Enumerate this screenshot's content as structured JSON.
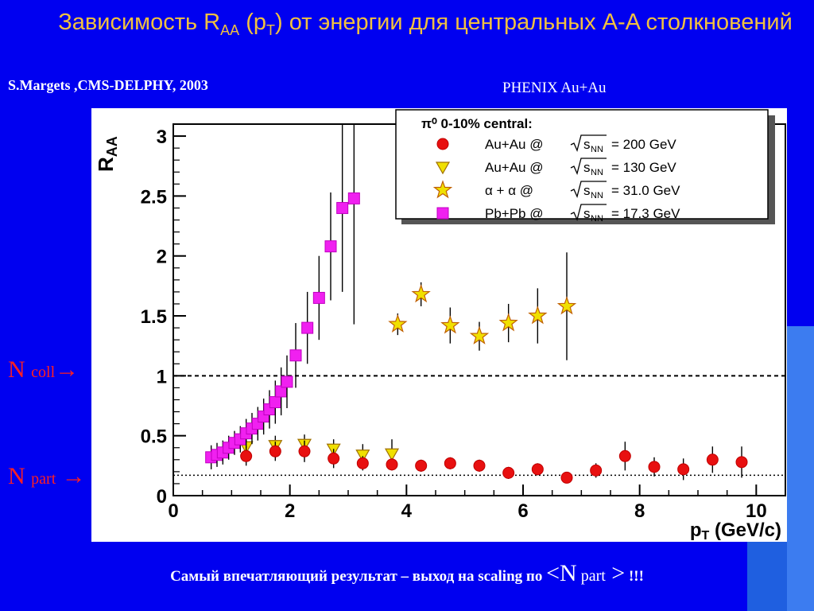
{
  "slide": {
    "title_main": "Зависимость R",
    "title_sub1": "AA",
    "title_mid": " (p",
    "title_sub2": "T",
    "title_end": ") от энергии для центральных A-A столкновений",
    "author": "S.Margets ,CMS-DELPHY, 2003",
    "phenix_label": "PHENIX  Au+Au",
    "n_coll": {
      "n": "N",
      "sub": "coll",
      "arrow": "→"
    },
    "n_part": {
      "n": "N",
      "sub": "part",
      "arrow": "→"
    },
    "bottom": {
      "text": "Самый впечатляющий результат – выход на scaling по ",
      "lt": "<",
      "n": "N",
      "sub": " part",
      "gt": " >",
      "exclaim": " !!!"
    }
  },
  "chart_data": {
    "type": "scatter",
    "xlabel": "p",
    "xlabel_sub": "T",
    "xlabel_unit": " (GeV/c)",
    "ylabel": "R",
    "ylabel_sub": "AA",
    "xlim": [
      0,
      10.5
    ],
    "ylim": [
      0,
      3.1
    ],
    "x_ticks": [
      0,
      2,
      4,
      6,
      8,
      10
    ],
    "y_ticks": [
      0,
      0.5,
      1,
      1.5,
      2,
      2.5,
      3
    ],
    "y_tick_labels": [
      "0",
      "0.5",
      "1",
      "1.5",
      "2",
      "2.5",
      "3"
    ],
    "reference_lines": [
      {
        "y": 1.0,
        "style": "dashed"
      },
      {
        "y": 0.17,
        "style": "dotted"
      }
    ],
    "legend": {
      "header": "π⁰ 0-10% central:",
      "position": "top-right"
    },
    "series": [
      {
        "name": "Au+Au @ √sNN = 200 GeV",
        "legend_system": "Au+Au @",
        "legend_energy": "= 200 GeV",
        "marker": "circle",
        "color": "#e81010",
        "points": [
          [
            1.25,
            0.33,
            0.08
          ],
          [
            1.75,
            0.37,
            0.08
          ],
          [
            2.25,
            0.37,
            0.09
          ],
          [
            2.75,
            0.31,
            0.08
          ],
          [
            3.25,
            0.27,
            0.06
          ],
          [
            3.75,
            0.26,
            0.05
          ],
          [
            4.25,
            0.25,
            0.05
          ],
          [
            4.75,
            0.27,
            0.05
          ],
          [
            5.25,
            0.25,
            0.05
          ],
          [
            5.75,
            0.19,
            0.05
          ],
          [
            6.25,
            0.22,
            0.05
          ],
          [
            6.75,
            0.15,
            0.04
          ],
          [
            7.25,
            0.21,
            0.06
          ],
          [
            7.75,
            0.33,
            0.12
          ],
          [
            8.25,
            0.24,
            0.08
          ],
          [
            8.75,
            0.22,
            0.09
          ],
          [
            9.25,
            0.3,
            0.11
          ],
          [
            9.75,
            0.28,
            0.13
          ]
        ]
      },
      {
        "name": "Au+Au @ √sNN = 130 GeV",
        "legend_system": "Au+Au @",
        "legend_energy": "= 130 GeV",
        "marker": "triangle-down",
        "color": "#f0e000",
        "points": [
          [
            1.25,
            0.41,
            0.07
          ],
          [
            1.75,
            0.42,
            0.08
          ],
          [
            2.25,
            0.43,
            0.08
          ],
          [
            2.75,
            0.39,
            0.08
          ],
          [
            3.25,
            0.34,
            0.09
          ],
          [
            3.75,
            0.35,
            0.12
          ]
        ]
      },
      {
        "name": "α + α @ √sNN = 31.0 GeV",
        "legend_system": "α + α  @",
        "legend_energy": "= 31.0 GeV",
        "marker": "star",
        "color": "#f0e000",
        "points": [
          [
            3.85,
            1.43,
            0.09
          ],
          [
            4.25,
            1.68,
            0.1
          ],
          [
            4.75,
            1.42,
            0.15
          ],
          [
            5.25,
            1.33,
            0.12
          ],
          [
            5.75,
            1.44,
            0.16
          ],
          [
            6.25,
            1.5,
            0.23
          ],
          [
            6.75,
            1.58,
            0.45
          ]
        ]
      },
      {
        "name": "Pb+Pb @ √sNN = 17.3 GeV",
        "legend_system": "Pb+Pb @",
        "legend_energy": "= 17.3 GeV",
        "marker": "square",
        "color": "#f020f0",
        "points": [
          [
            0.65,
            0.32,
            0.1
          ],
          [
            0.75,
            0.34,
            0.1
          ],
          [
            0.85,
            0.36,
            0.1
          ],
          [
            0.95,
            0.4,
            0.1
          ],
          [
            1.05,
            0.44,
            0.1
          ],
          [
            1.15,
            0.47,
            0.11
          ],
          [
            1.25,
            0.52,
            0.12
          ],
          [
            1.35,
            0.56,
            0.13
          ],
          [
            1.45,
            0.6,
            0.14
          ],
          [
            1.55,
            0.66,
            0.15
          ],
          [
            1.65,
            0.72,
            0.16
          ],
          [
            1.75,
            0.78,
            0.18
          ],
          [
            1.85,
            0.87,
            0.2
          ],
          [
            1.95,
            0.95,
            0.22
          ],
          [
            2.1,
            1.17,
            0.27
          ],
          [
            2.3,
            1.4,
            0.3
          ],
          [
            2.5,
            1.65,
            0.35
          ],
          [
            2.7,
            2.08,
            0.45
          ],
          [
            2.9,
            2.4,
            0.7
          ],
          [
            3.1,
            2.48,
            1.05
          ]
        ]
      }
    ]
  }
}
